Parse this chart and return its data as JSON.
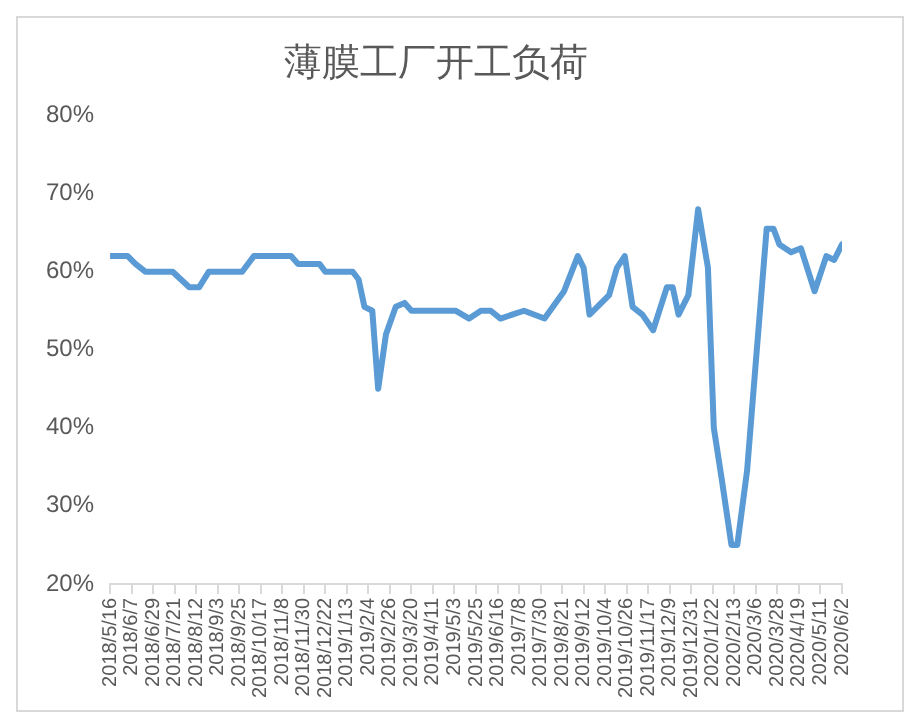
{
  "chart_data": {
    "type": "line",
    "title": "薄膜工厂开工负荷",
    "x": [
      "2018-05-16",
      "2018-06-03",
      "2018-06-11",
      "2018-06-21",
      "2018-07-19",
      "2018-08-05",
      "2018-08-15",
      "2018-08-25",
      "2018-09-28",
      "2018-10-10",
      "2018-11-17",
      "2018-11-24",
      "2018-12-16",
      "2018-12-22",
      "2019-01-19",
      "2019-01-25",
      "2019-01-31",
      "2019-02-08",
      "2019-02-14",
      "2019-02-22",
      "2019-03-04",
      "2019-03-13",
      "2019-03-20",
      "2019-05-04",
      "2019-05-18",
      "2019-05-30",
      "2019-06-09",
      "2019-06-19",
      "2019-07-13",
      "2019-08-03",
      "2019-08-23",
      "2019-09-06",
      "2019-09-12",
      "2019-09-18",
      "2019-10-08",
      "2019-10-16",
      "2019-10-24",
      "2019-11-01",
      "2019-11-11",
      "2019-11-22",
      "2019-12-06",
      "2019-12-12",
      "2019-12-18",
      "2019-12-28",
      "2020-01-07",
      "2020-01-17",
      "2020-01-23",
      "2020-01-31",
      "2020-02-10",
      "2020-02-16",
      "2020-02-26",
      "2020-03-05",
      "2020-03-17",
      "2020-03-24",
      "2020-03-30",
      "2020-04-11",
      "2020-04-21",
      "2020-05-05",
      "2020-05-17",
      "2020-05-25",
      "2020-06-02"
    ],
    "series": [
      {
        "color": "#5b9bd5",
        "values": [
          62,
          62,
          61,
          60,
          60,
          58,
          58,
          60,
          60,
          62,
          62,
          61,
          61,
          60,
          60,
          59,
          55.5,
          55,
          45,
          52,
          55.5,
          56,
          55,
          55,
          54,
          55,
          55,
          54,
          55,
          54,
          57.5,
          62,
          60.5,
          54.5,
          57,
          60.5,
          62,
          55.5,
          54.5,
          52.5,
          58,
          58,
          54.5,
          57,
          68,
          60.5,
          40,
          33.5,
          25,
          25,
          34.5,
          47,
          65.5,
          65.5,
          63.5,
          62.5,
          63,
          57.5,
          62,
          61.5,
          63.5
        ]
      }
    ],
    "xlim": [
      "2018-05-16",
      "2020-06-02"
    ],
    "xticks": [
      {
        "value": "2018-05-16",
        "label": "2018/5/16"
      },
      {
        "value": "2018-06-07",
        "label": "2018/6/7"
      },
      {
        "value": "2018-06-29",
        "label": "2018/6/29"
      },
      {
        "value": "2018-07-21",
        "label": "2018/7/21"
      },
      {
        "value": "2018-08-12",
        "label": "2018/8/12"
      },
      {
        "value": "2018-09-03",
        "label": "2018/9/3"
      },
      {
        "value": "2018-09-25",
        "label": "2018/9/25"
      },
      {
        "value": "2018-10-17",
        "label": "2018/10/17"
      },
      {
        "value": "2018-11-08",
        "label": "2018/11/8"
      },
      {
        "value": "2018-11-30",
        "label": "2018/11/30"
      },
      {
        "value": "2018-12-22",
        "label": "2018/12/22"
      },
      {
        "value": "2019-01-13",
        "label": "2019/1/13"
      },
      {
        "value": "2019-02-04",
        "label": "2019/2/4"
      },
      {
        "value": "2019-02-26",
        "label": "2019/2/26"
      },
      {
        "value": "2019-03-20",
        "label": "2019/3/20"
      },
      {
        "value": "2019-04-11",
        "label": "2019/4/11"
      },
      {
        "value": "2019-05-03",
        "label": "2019/5/3"
      },
      {
        "value": "2019-05-25",
        "label": "2019/5/25"
      },
      {
        "value": "2019-06-16",
        "label": "2019/6/16"
      },
      {
        "value": "2019-07-08",
        "label": "2019/7/8"
      },
      {
        "value": "2019-07-30",
        "label": "2019/7/30"
      },
      {
        "value": "2019-08-21",
        "label": "2019/8/21"
      },
      {
        "value": "2019-09-12",
        "label": "2019/9/12"
      },
      {
        "value": "2019-10-04",
        "label": "2019/10/4"
      },
      {
        "value": "2019-10-26",
        "label": "2019/10/26"
      },
      {
        "value": "2019-11-17",
        "label": "2019/11/17"
      },
      {
        "value": "2019-12-09",
        "label": "2019/12/9"
      },
      {
        "value": "2019-12-31",
        "label": "2019/12/31"
      },
      {
        "value": "2020-01-22",
        "label": "2020/1/22"
      },
      {
        "value": "2020-02-13",
        "label": "2020/2/13"
      },
      {
        "value": "2020-03-06",
        "label": "2020/3/6"
      },
      {
        "value": "2020-03-28",
        "label": "2020/3/28"
      },
      {
        "value": "2020-04-19",
        "label": "2020/4/19"
      },
      {
        "value": "2020-05-11",
        "label": "2020/5/11"
      },
      {
        "value": "2020-06-02",
        "label": "2020/6/2"
      }
    ],
    "ylim": [
      20,
      80
    ],
    "yticks": [
      {
        "value": 20,
        "label": "20%"
      },
      {
        "value": 30,
        "label": "30%"
      },
      {
        "value": 40,
        "label": "40%"
      },
      {
        "value": 50,
        "label": "50%"
      },
      {
        "value": 60,
        "label": "60%"
      },
      {
        "value": 70,
        "label": "70%"
      },
      {
        "value": 80,
        "label": "80%"
      }
    ],
    "grid": false,
    "legend": false,
    "marker": "none",
    "line_style": "solid"
  }
}
